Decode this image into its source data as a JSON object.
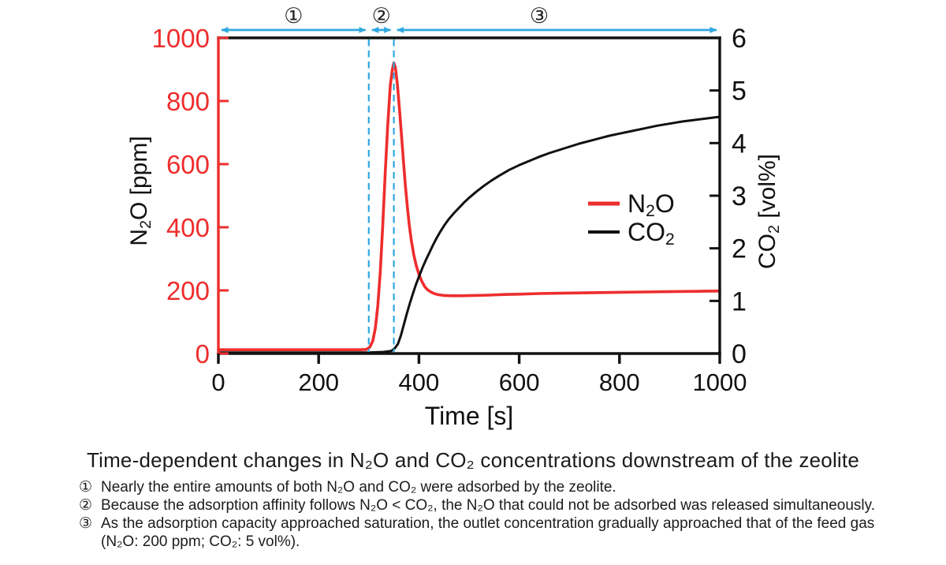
{
  "figure": {
    "notes": [
      {
        "marker": "①",
        "text": "Nearly the entire amounts of both N₂O and CO₂ were adsorbed by the zeolite."
      },
      {
        "marker": "②",
        "text": "Because the adsorption affinity follows N₂O < CO₂, the N₂O that could not be adsorbed was released simultaneously."
      },
      {
        "marker": "③",
        "text": "As the adsorption capacity approached saturation, the outlet concentration gradually approached that of the feed gas\n(N₂O: 200 ppm; CO₂: 5 vol%)."
      }
    ]
  },
  "chart_data": {
    "type": "line",
    "title": "Time-dependent changes in N₂O and CO₂ concentrations downstream of the zeolite",
    "xlabel": "Time [s]",
    "xlim": [
      0,
      1000
    ],
    "x_ticks": [
      0,
      200,
      400,
      600,
      800,
      1000
    ],
    "grid": false,
    "left_axis": {
      "label": "N₂O [ppm]",
      "lim": [
        0,
        1000
      ],
      "ticks": [
        0,
        200,
        400,
        600,
        800,
        1000
      ],
      "color": "#ee2d2d"
    },
    "right_axis": {
      "label": "CO₂ [vol%]",
      "lim": [
        0,
        6
      ],
      "ticks": [
        0,
        1,
        2,
        3,
        4,
        5,
        6
      ],
      "color": "#111111"
    },
    "legend": {
      "position": "right-middle",
      "entries": [
        {
          "label": "N₂O",
          "color": "#ee2d2d"
        },
        {
          "label": "CO₂",
          "color": "#111111"
        }
      ]
    },
    "dashed_guides": {
      "color": "#2fa8e0",
      "t": [
        300,
        350
      ]
    },
    "sections": [
      {
        "label": "①",
        "t_start": 0,
        "t_end": 300,
        "label_t": 150
      },
      {
        "label": "②",
        "t_start": 300,
        "t_end": 350,
        "label_t": 325
      },
      {
        "label": "③",
        "t_start": 350,
        "t_end": 1000,
        "label_t": 640
      }
    ],
    "series": [
      {
        "name": "N₂O",
        "axis": "left",
        "unit": "ppm",
        "color": "#ee2d2d",
        "width": 3.6,
        "points": [
          [
            0,
            12
          ],
          [
            60,
            12
          ],
          [
            120,
            12
          ],
          [
            180,
            12
          ],
          [
            240,
            12
          ],
          [
            280,
            12
          ],
          [
            295,
            13
          ],
          [
            302,
            20
          ],
          [
            308,
            40
          ],
          [
            313,
            80
          ],
          [
            318,
            150
          ],
          [
            323,
            260
          ],
          [
            328,
            410
          ],
          [
            333,
            580
          ],
          [
            338,
            730
          ],
          [
            343,
            850
          ],
          [
            347,
            900
          ],
          [
            350,
            921
          ],
          [
            353,
            907
          ],
          [
            357,
            852
          ],
          [
            361,
            778
          ],
          [
            365,
            698
          ],
          [
            369,
            612
          ],
          [
            373,
            533
          ],
          [
            377,
            463
          ],
          [
            381,
            404
          ],
          [
            385,
            356
          ],
          [
            390,
            311
          ],
          [
            395,
            277
          ],
          [
            400,
            251
          ],
          [
            406,
            228
          ],
          [
            412,
            211
          ],
          [
            418,
            201
          ],
          [
            425,
            194
          ],
          [
            432,
            189
          ],
          [
            440,
            186
          ],
          [
            450,
            184
          ],
          [
            465,
            183
          ],
          [
            485,
            183
          ],
          [
            510,
            184
          ],
          [
            540,
            185
          ],
          [
            570,
            187
          ],
          [
            600,
            188
          ],
          [
            640,
            190
          ],
          [
            680,
            191
          ],
          [
            720,
            192
          ],
          [
            760,
            193
          ],
          [
            800,
            194
          ],
          [
            850,
            195
          ],
          [
            900,
            196
          ],
          [
            950,
            197
          ],
          [
            1000,
            198
          ]
        ]
      },
      {
        "name": "CO₂",
        "axis": "right",
        "unit": "vol%",
        "color": "#111111",
        "width": 3,
        "points": [
          [
            0,
            0.02
          ],
          [
            60,
            0.02
          ],
          [
            120,
            0.02
          ],
          [
            180,
            0.02
          ],
          [
            240,
            0.02
          ],
          [
            300,
            0.02
          ],
          [
            330,
            0.03
          ],
          [
            345,
            0.05
          ],
          [
            352,
            0.1
          ],
          [
            358,
            0.18
          ],
          [
            364,
            0.34
          ],
          [
            370,
            0.55
          ],
          [
            376,
            0.76
          ],
          [
            382,
            0.96
          ],
          [
            388,
            1.14
          ],
          [
            394,
            1.31
          ],
          [
            400,
            1.46
          ],
          [
            407,
            1.63
          ],
          [
            414,
            1.78
          ],
          [
            421,
            1.92
          ],
          [
            428,
            2.06
          ],
          [
            435,
            2.19
          ],
          [
            443,
            2.32
          ],
          [
            451,
            2.44
          ],
          [
            460,
            2.56
          ],
          [
            470,
            2.67
          ],
          [
            480,
            2.77
          ],
          [
            490,
            2.87
          ],
          [
            500,
            2.96
          ],
          [
            515,
            3.08
          ],
          [
            530,
            3.19
          ],
          [
            545,
            3.29
          ],
          [
            560,
            3.38
          ],
          [
            580,
            3.49
          ],
          [
            600,
            3.58
          ],
          [
            620,
            3.66
          ],
          [
            640,
            3.74
          ],
          [
            660,
            3.81
          ],
          [
            680,
            3.87
          ],
          [
            700,
            3.93
          ],
          [
            720,
            3.99
          ],
          [
            740,
            4.04
          ],
          [
            760,
            4.09
          ],
          [
            780,
            4.14
          ],
          [
            800,
            4.18
          ],
          [
            825,
            4.23
          ],
          [
            850,
            4.28
          ],
          [
            875,
            4.33
          ],
          [
            900,
            4.37
          ],
          [
            925,
            4.41
          ],
          [
            950,
            4.44
          ],
          [
            975,
            4.47
          ],
          [
            1000,
            4.5
          ]
        ]
      }
    ]
  }
}
